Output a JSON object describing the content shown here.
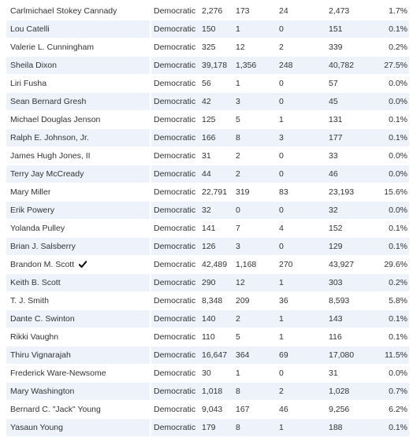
{
  "candidates": [
    {
      "name": "Carlmichael Stokey Cannady",
      "party": "Democratic",
      "v1": "2,276",
      "v2": "173",
      "v3": "24",
      "total": "2,473",
      "pct": "1.7%",
      "winner": false
    },
    {
      "name": "Lou Catelli",
      "party": "Democratic",
      "v1": "150",
      "v2": "1",
      "v3": "0",
      "total": "151",
      "pct": "0.1%",
      "winner": false
    },
    {
      "name": "Valerie L. Cunningham",
      "party": "Democratic",
      "v1": "325",
      "v2": "12",
      "v3": "2",
      "total": "339",
      "pct": "0.2%",
      "winner": false
    },
    {
      "name": "Sheila Dixon",
      "party": "Democratic",
      "v1": "39,178",
      "v2": "1,356",
      "v3": "248",
      "total": "40,782",
      "pct": "27.5%",
      "winner": false
    },
    {
      "name": "Liri Fusha",
      "party": "Democratic",
      "v1": "56",
      "v2": "1",
      "v3": "0",
      "total": "57",
      "pct": "0.0%",
      "winner": false
    },
    {
      "name": "Sean Bernard Gresh",
      "party": "Democratic",
      "v1": "42",
      "v2": "3",
      "v3": "0",
      "total": "45",
      "pct": "0.0%",
      "winner": false
    },
    {
      "name": "Michael Douglas Jenson",
      "party": "Democratic",
      "v1": "125",
      "v2": "5",
      "v3": "1",
      "total": "131",
      "pct": "0.1%",
      "winner": false
    },
    {
      "name": "Ralph E. Johnson, Jr.",
      "party": "Democratic",
      "v1": "166",
      "v2": "8",
      "v3": "3",
      "total": "177",
      "pct": "0.1%",
      "winner": false
    },
    {
      "name": "James Hugh Jones, II",
      "party": "Democratic",
      "v1": "31",
      "v2": "2",
      "v3": "0",
      "total": "33",
      "pct": "0.0%",
      "winner": false
    },
    {
      "name": "Terry Jay McCready",
      "party": "Democratic",
      "v1": "44",
      "v2": "2",
      "v3": "0",
      "total": "46",
      "pct": "0.0%",
      "winner": false
    },
    {
      "name": "Mary Miller",
      "party": "Democratic",
      "v1": "22,791",
      "v2": "319",
      "v3": "83",
      "total": "23,193",
      "pct": "15.6%",
      "winner": false
    },
    {
      "name": "Erik Powery",
      "party": "Democratic",
      "v1": "32",
      "v2": "0",
      "v3": "0",
      "total": "32",
      "pct": "0.0%",
      "winner": false
    },
    {
      "name": "Yolanda Pulley",
      "party": "Democratic",
      "v1": "141",
      "v2": "7",
      "v3": "4",
      "total": "152",
      "pct": "0.1%",
      "winner": false
    },
    {
      "name": "Brian J. Salsberry",
      "party": "Democratic",
      "v1": "126",
      "v2": "3",
      "v3": "0",
      "total": "129",
      "pct": "0.1%",
      "winner": false
    },
    {
      "name": "Brandon M. Scott",
      "party": "Democratic",
      "v1": "42,489",
      "v2": "1,168",
      "v3": "270",
      "total": "43,927",
      "pct": "29.6%",
      "winner": true
    },
    {
      "name": "Keith B. Scott",
      "party": "Democratic",
      "v1": "290",
      "v2": "12",
      "v3": "1",
      "total": "303",
      "pct": "0.2%",
      "winner": false
    },
    {
      "name": "T. J. Smith",
      "party": "Democratic",
      "v1": "8,348",
      "v2": "209",
      "v3": "36",
      "total": "8,593",
      "pct": "5.8%",
      "winner": false
    },
    {
      "name": "Dante C. Swinton",
      "party": "Democratic",
      "v1": "140",
      "v2": "2",
      "v3": "1",
      "total": "143",
      "pct": "0.1%",
      "winner": false
    },
    {
      "name": "Rikki Vaughn",
      "party": "Democratic",
      "v1": "110",
      "v2": "5",
      "v3": "1",
      "total": "116",
      "pct": "0.1%",
      "winner": false
    },
    {
      "name": "Thiru Vignarajah",
      "party": "Democratic",
      "v1": "16,647",
      "v2": "364",
      "v3": "69",
      "total": "17,080",
      "pct": "11.5%",
      "winner": false
    },
    {
      "name": "Frederick Ware-Newsome",
      "party": "Democratic",
      "v1": "30",
      "v2": "1",
      "v3": "0",
      "total": "31",
      "pct": "0.0%",
      "winner": false
    },
    {
      "name": "Mary Washington",
      "party": "Democratic",
      "v1": "1,018",
      "v2": "8",
      "v3": "2",
      "total": "1,028",
      "pct": "0.7%",
      "winner": false
    },
    {
      "name": "Bernard C. \"Jack\" Young",
      "party": "Democratic",
      "v1": "9,043",
      "v2": "167",
      "v3": "46",
      "total": "9,256",
      "pct": "6.2%",
      "winner": false
    },
    {
      "name": "Yasaun Young",
      "party": "Democratic",
      "v1": "179",
      "v2": "8",
      "v3": "1",
      "total": "188",
      "pct": "0.1%",
      "winner": false
    }
  ],
  "colors": {
    "row_alt": "#eef2fb",
    "text": "#333333"
  },
  "icons": {
    "winner": "check-icon"
  }
}
